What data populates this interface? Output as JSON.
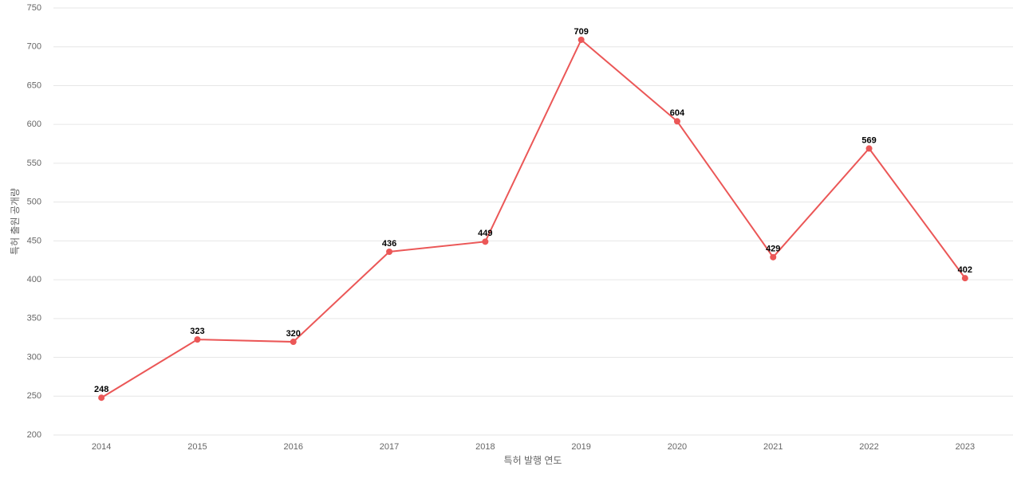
{
  "chart_data": {
    "type": "line",
    "x_label": "특허 발행 연도",
    "y_label": "특허 출원 공개량",
    "categories": [
      "2014",
      "2015",
      "2016",
      "2017",
      "2018",
      "2019",
      "2020",
      "2021",
      "2022",
      "2023"
    ],
    "values": [
      248,
      323,
      320,
      436,
      449,
      709,
      604,
      429,
      569,
      402
    ],
    "color": "#eb5757",
    "ylim": [
      200,
      750
    ],
    "yticks": [
      200,
      250,
      300,
      350,
      400,
      450,
      500,
      550,
      600,
      650,
      700,
      750
    ],
    "grid": true
  }
}
